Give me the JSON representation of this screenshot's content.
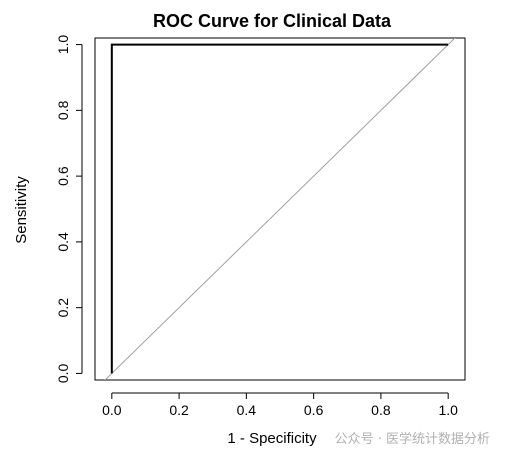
{
  "chart_data": {
    "type": "line",
    "title": "ROC Curve for Clinical Data",
    "xlabel": "1 - Specificity",
    "ylabel": "Sensitivity",
    "xlim": [
      -0.05,
      1.05
    ],
    "ylim": [
      -0.02,
      1.02
    ],
    "x_ticks": [
      "0.0",
      "0.2",
      "0.4",
      "0.6",
      "0.8",
      "1.0"
    ],
    "y_ticks": [
      "0.0",
      "0.2",
      "0.4",
      "0.6",
      "0.8",
      "1.0"
    ],
    "grid": false,
    "series": [
      {
        "x": [
          0,
          0,
          1
        ],
        "y": [
          0,
          1,
          1
        ],
        "color": "#000000"
      }
    ],
    "reference_line": {
      "x": [
        -0.05,
        1.05
      ],
      "y": [
        -0.05,
        1.05
      ],
      "color": "#a0a0a0"
    }
  },
  "watermark": "公众号 · 医学统计数据分析"
}
